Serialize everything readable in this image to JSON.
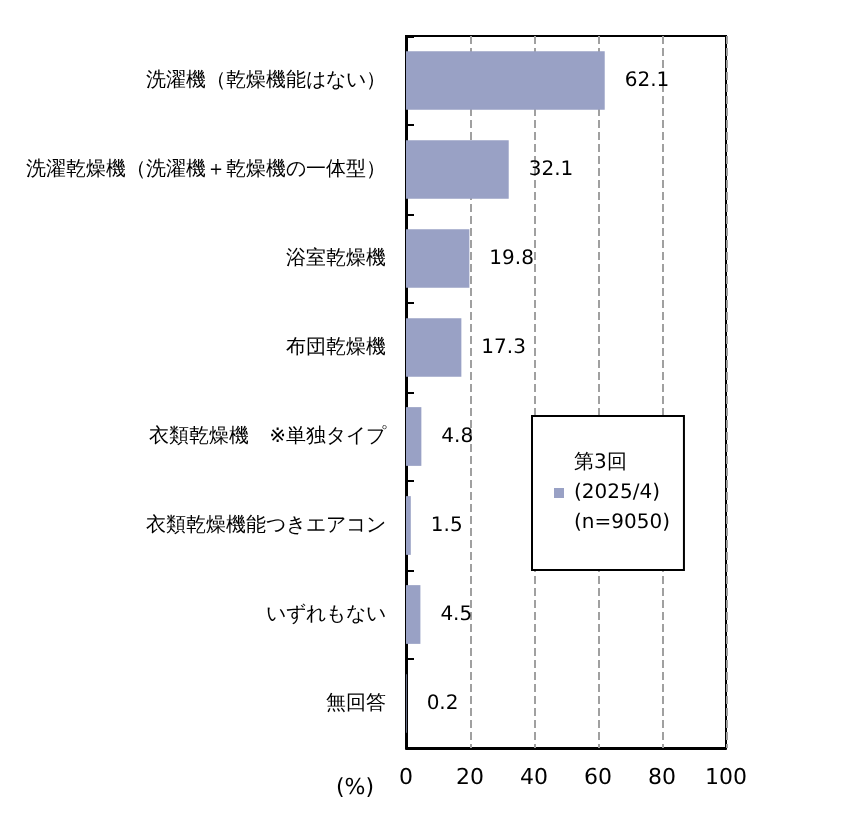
{
  "chart_data": {
    "type": "bar",
    "orientation": "horizontal",
    "categories": [
      "洗濯機（乾燥機能はない）",
      "洗濯乾燥機（洗濯機＋乾燥機の一体型）",
      "浴室乾燥機",
      "布団乾燥機",
      "衣類乾燥機　※単独タイプ",
      "衣類乾燥機能つきエアコン",
      "いずれもない",
      "無回答"
    ],
    "series": [
      {
        "name": "第3回\n(2025/4)\n(n=9050)",
        "color": "#99a1c5",
        "values": [
          62.1,
          32.1,
          19.8,
          17.3,
          4.8,
          1.5,
          4.5,
          0.2
        ]
      }
    ],
    "xlabel": "(%)",
    "xlim": [
      0,
      100
    ],
    "xticks": [
      0,
      20,
      40,
      60,
      80,
      100
    ],
    "grid": "x",
    "legend": "right",
    "data_labels": true
  }
}
